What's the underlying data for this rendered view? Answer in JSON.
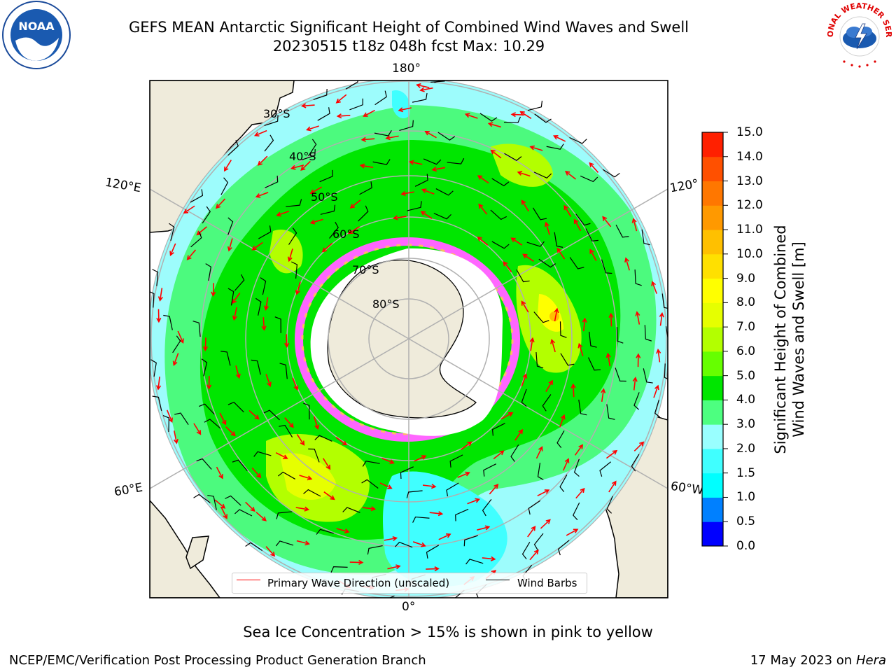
{
  "title_line1": "GEFS MEAN Antarctic Significant Height of Combined Wind Waves and Swell",
  "title_line2": "20230515 t18z 048h fcst   Max: 10.29",
  "map": {
    "lon_labels": [
      "180°",
      "120°E",
      "120°",
      "60°E",
      "60°W",
      "0°"
    ],
    "lat_labels": [
      "30°S",
      "40°S",
      "50°S",
      "60°S",
      "70°S",
      "80°S"
    ],
    "colors": {
      "ocean_low": "#9dfcfc",
      "ocean_mid": "#4cfa7e",
      "ocean_high": "#00e600",
      "land": "#efebdb",
      "ice": "#ff66ff",
      "antarctica": "#ffffff",
      "wave_arrow": "#ff0000"
    }
  },
  "legend": {
    "wave_label": "Primary Wave Direction (unscaled)",
    "wind_label": "Wind Barbs"
  },
  "colorbar": {
    "title_line1": "Significant Height of Combined",
    "title_line2": "Wind Waves and Swell [m]",
    "ticks": [
      "15.0",
      "14.0",
      "13.0",
      "12.0",
      "11.0",
      "10.0",
      "9.0",
      "8.0",
      "7.0",
      "6.0",
      "5.0",
      "4.0",
      "3.0",
      "2.0",
      "1.5",
      "1.0",
      "0.5",
      "0.0"
    ],
    "colors": [
      "#0000ff",
      "#0080ff",
      "#00ffff",
      "#40ffff",
      "#99ffff",
      "#4dff80",
      "#00e600",
      "#66ff00",
      "#b3ff00",
      "#e6ff00",
      "#ffff00",
      "#ffe000",
      "#ffc000",
      "#ff9900",
      "#ff7700",
      "#ff5000",
      "#ff2000"
    ]
  },
  "footer_note": "Sea Ice Concentration > 15% is shown in pink to yellow",
  "credit": "NCEP/EMC/Verification Post Processing Product Generation Branch",
  "date": "17 May 2023 on",
  "host": "Hera",
  "logos": {
    "left_text": "NOAA",
    "right_text": "NATIONAL WEATHER SERVICE"
  }
}
